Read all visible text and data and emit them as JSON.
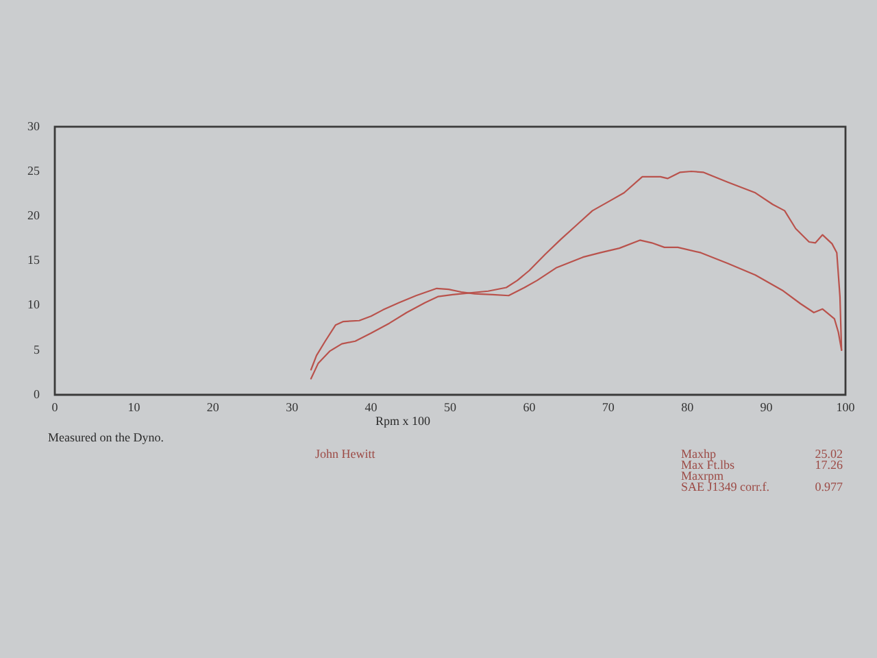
{
  "chart_data": {
    "type": "line",
    "xlabel": "Rpm x 100",
    "xlim": [
      0,
      100
    ],
    "xticks": [
      0,
      10,
      20,
      30,
      40,
      50,
      60,
      70,
      80,
      90,
      100
    ],
    "ylim": [
      0,
      30
    ],
    "yticks": [
      0,
      5,
      10,
      15,
      20,
      25,
      30
    ],
    "series": [
      {
        "color": "#b9524c",
        "x": [
          32.4,
          33.1,
          34.2,
          35.5,
          36.5,
          38.5,
          40,
          41.5,
          43.5,
          45.7,
          48.3,
          49.8,
          51.4,
          53.1,
          55.4,
          57.4,
          59.4,
          61,
          63.4,
          66.8,
          69,
          71.4,
          74,
          75.5,
          77.1,
          78.8,
          81.7,
          85.1,
          88.6,
          92,
          94.3,
          96,
          97.1,
          98.6,
          99.1,
          99.5
        ],
        "values": [
          2.8,
          4.4,
          6,
          7.8,
          8.2,
          8.3,
          8.8,
          9.5,
          10.3,
          11.1,
          11.9,
          11.8,
          11.5,
          11.3,
          11.2,
          11.1,
          12,
          12.8,
          14.2,
          15.4,
          15.9,
          16.4,
          17.3,
          17,
          16.5,
          16.5,
          15.9,
          14.7,
          13.4,
          11.7,
          10.2,
          9.2,
          9.6,
          8.5,
          7,
          5
        ]
      },
      {
        "color": "#b9524c",
        "x": [
          32.4,
          33.3,
          34.8,
          36.3,
          38,
          40,
          42.3,
          44.5,
          46.8,
          48.5,
          50.3,
          52.5,
          54.8,
          57.1,
          58.5,
          60,
          62,
          64,
          66,
          68,
          70,
          72,
          74.3,
          76.6,
          77.5,
          79.1,
          80.5,
          82,
          85.1,
          88.6,
          90.8,
          92.3,
          93.7,
          95.4,
          96.2,
          97.1,
          98.3,
          98.9,
          99.3,
          99.5
        ],
        "values": [
          1.8,
          3.5,
          4.9,
          5.7,
          6,
          6.9,
          8,
          9.2,
          10.3,
          11,
          11.2,
          11.4,
          11.6,
          12,
          12.8,
          13.9,
          15.7,
          17.4,
          19,
          20.6,
          21.6,
          22.6,
          24.4,
          24.4,
          24.2,
          24.9,
          25,
          24.9,
          23.8,
          22.6,
          21.3,
          20.6,
          18.6,
          17.1,
          17,
          17.9,
          16.9,
          15.9,
          11,
          5
        ]
      }
    ],
    "annotations": [
      "Measured on the Dyno.",
      "John Hewitt",
      "Maxhp",
      "25.02",
      "Max Ft.lbs",
      "17.26",
      "Maxrpm",
      "SAE J1349 corr.f.",
      "0.977"
    ]
  }
}
